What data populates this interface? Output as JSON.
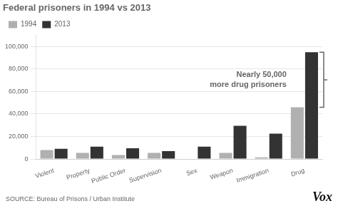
{
  "chart_data": {
    "type": "bar",
    "title": "Federal prisoners in 1994 vs 2013",
    "categories": [
      "Violent",
      "Property",
      "Public Order",
      "Supervision",
      "Sex",
      "Weapon",
      "Immigration",
      "Drug"
    ],
    "series": [
      {
        "name": "1994",
        "color": "#b0b0b0",
        "values": [
          8000,
          5500,
          3500,
          5500,
          0,
          5500,
          1500,
          46000
        ]
      },
      {
        "name": "2013",
        "color": "#333333",
        "values": [
          9000,
          11000,
          9500,
          7000,
          11000,
          29500,
          22500,
          95000
        ]
      }
    ],
    "ylim": [
      0,
      110000
    ],
    "yticks": [
      0,
      {
        "value": 20000,
        "label": "20,000"
      },
      {
        "value": 40000,
        "label": "40,000"
      },
      {
        "value": 60000,
        "label": "60,000"
      },
      {
        "value": 80000,
        "label": "80,000"
      },
      {
        "value": 100000,
        "label": "100,000"
      }
    ],
    "grid": "y",
    "legend": "upper left",
    "annotations": [
      "Nearly 50,000\nmore drug prisoners"
    ],
    "source": "SOURCE: Bureau of Prisons / Urban Institute",
    "credit": "Vox"
  }
}
